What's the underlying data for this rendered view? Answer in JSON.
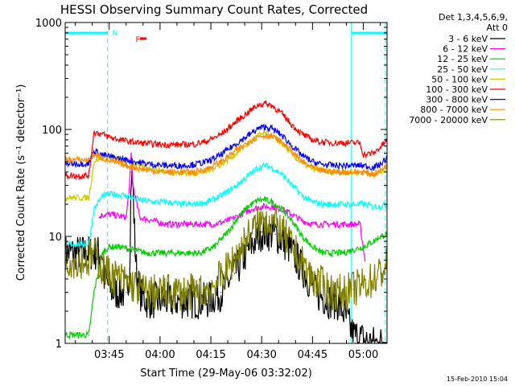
{
  "chart_data": {
    "type": "line",
    "title": "HESSI Observing Summary Count Rates, Corrected",
    "xlabel": "Start Time (29-May-06 03:32:02)",
    "ylabel": "Corrected Count Rate (s⁻¹ detector⁻¹)",
    "yscale": "log",
    "ylim": [
      1,
      1000
    ],
    "xlim": [
      0,
      95
    ],
    "x_tick_labels": [
      "03:45",
      "04:00",
      "04:15",
      "04:30",
      "04:45",
      "05:00"
    ],
    "x_tick_values": [
      13,
      28,
      43,
      58,
      73,
      88
    ],
    "y_tick_labels": [
      "1",
      "10",
      "100",
      "1000"
    ],
    "y_tick_values": [
      1,
      10,
      100,
      1000
    ],
    "legend_title_1": "Det 1,3,4,5,6,9,",
    "legend_title_2": "Att 0",
    "legend_position": "right",
    "series": [
      {
        "name": "3 - 6 keV",
        "color": "#000000",
        "x": [
          0,
          11,
          11.5,
          14,
          18,
          19,
          19.5,
          20,
          20.5,
          21,
          22,
          24,
          28,
          32,
          36,
          42,
          46,
          50,
          54,
          58,
          62,
          66,
          70,
          74,
          78,
          80,
          82,
          85,
          90,
          93,
          95
        ],
        "y": [
          7,
          7,
          4,
          3,
          3,
          5,
          40,
          30,
          10,
          5,
          3,
          2.5,
          2.5,
          2.5,
          2.5,
          2.5,
          3,
          4.5,
          7.5,
          11,
          10.5,
          8,
          5,
          3,
          2.5,
          2.5,
          2,
          1.2,
          1,
          1,
          1
        ]
      },
      {
        "name": "6 - 12 keV",
        "color": "#ff00ff",
        "x": [
          10,
          11,
          14,
          18,
          19,
          19.5,
          20,
          22,
          26,
          30,
          35,
          40,
          44,
          48,
          52,
          55,
          58,
          61,
          64,
          67,
          70,
          73,
          76,
          80,
          84,
          87,
          88.5
        ],
        "y": [
          15,
          16,
          16,
          15,
          30,
          60,
          30,
          15,
          14,
          13,
          13,
          13,
          13,
          14,
          16,
          18,
          19,
          19,
          18,
          16,
          14,
          13,
          13,
          13,
          13,
          13,
          6
        ]
      },
      {
        "name": "12 - 25 keV",
        "color": "#00cc00",
        "x": [
          0,
          7,
          8.5,
          11,
          13,
          16,
          20,
          24,
          28,
          32,
          36,
          40,
          44,
          48,
          51,
          54,
          57,
          59,
          61,
          64,
          67,
          70,
          73,
          76,
          79,
          82,
          85,
          88,
          91,
          93,
          95
        ],
        "y": [
          1.2,
          1.2,
          3,
          7,
          8,
          8,
          7.5,
          7,
          7,
          7,
          7,
          7,
          8,
          11,
          15,
          19,
          22,
          22,
          21,
          18,
          14,
          10,
          8,
          7,
          7,
          7,
          7.5,
          8,
          9,
          10,
          10.5
        ]
      },
      {
        "name": "25 - 50 keV",
        "color": "#00ffff",
        "x": [
          0,
          7,
          8.5,
          11,
          14,
          18,
          22,
          26,
          30,
          34,
          38,
          42,
          46,
          50,
          54,
          57,
          59,
          61,
          64,
          67,
          70,
          73,
          76,
          80,
          84,
          88,
          91,
          93,
          95
        ],
        "y": [
          8.5,
          8.5,
          18,
          24,
          25,
          24,
          22,
          21,
          21,
          20,
          20,
          21,
          24,
          29,
          37,
          44,
          46,
          44,
          38,
          30,
          24,
          21,
          20,
          20,
          20,
          20,
          19,
          19,
          20
        ]
      },
      {
        "name": "50 - 100 keV",
        "color": "#cccc00",
        "x": [
          0,
          7,
          8.5,
          11,
          14,
          18,
          22,
          26,
          30,
          34,
          38,
          42,
          46,
          50,
          54,
          57,
          59,
          61,
          64,
          67,
          70,
          73,
          76,
          80,
          84,
          88,
          91,
          93,
          95
        ],
        "y": [
          23,
          23,
          50,
          56,
          54,
          50,
          46,
          43,
          40,
          39,
          39,
          41,
          47,
          58,
          74,
          88,
          92,
          88,
          74,
          58,
          48,
          43,
          41,
          40,
          40,
          40,
          38,
          40,
          44
        ]
      },
      {
        "name": "100 - 300 keV",
        "color": "#ff0000",
        "x": [
          0,
          7,
          8.5,
          11,
          14,
          18,
          22,
          26,
          30,
          34,
          38,
          42,
          46,
          50,
          54,
          57,
          59,
          61,
          64,
          67,
          70,
          73,
          76,
          80,
          84,
          87,
          88,
          91,
          93,
          95
        ],
        "y": [
          37,
          37,
          95,
          90,
          83,
          78,
          75,
          73,
          72,
          72,
          73,
          78,
          90,
          115,
          145,
          170,
          175,
          168,
          140,
          110,
          90,
          80,
          76,
          75,
          75,
          75,
          58,
          60,
          68,
          80
        ]
      },
      {
        "name": "300 - 800 keV",
        "color": "#0000ff",
        "x": [
          0,
          7,
          8.5,
          11,
          14,
          18,
          22,
          26,
          30,
          34,
          38,
          42,
          46,
          50,
          54,
          57,
          59,
          61,
          64,
          67,
          70,
          73,
          76,
          80,
          84,
          88,
          91,
          93,
          95
        ],
        "y": [
          48,
          48,
          63,
          58,
          55,
          52,
          49,
          47,
          46,
          46,
          47,
          50,
          58,
          72,
          88,
          102,
          106,
          102,
          88,
          70,
          57,
          50,
          47,
          46,
          46,
          46,
          44,
          47,
          55
        ]
      },
      {
        "name": "800 - 7000 keV",
        "color": "#ff8800",
        "x": [
          0,
          7,
          8.5,
          11,
          14,
          18,
          22,
          26,
          30,
          34,
          38,
          42,
          46,
          50,
          54,
          57,
          59,
          61,
          64,
          67,
          70,
          73,
          76,
          80,
          84,
          88,
          91,
          93,
          95
        ],
        "y": [
          52,
          52,
          58,
          54,
          50,
          46,
          43,
          41,
          40,
          40,
          40,
          43,
          50,
          62,
          76,
          86,
          88,
          86,
          76,
          62,
          50,
          44,
          41,
          40,
          40,
          40,
          38,
          41,
          47
        ]
      },
      {
        "name": "7000 - 20000 keV",
        "color": "#808000",
        "x": [
          0,
          7,
          8.5,
          11,
          13,
          16,
          20,
          24,
          28,
          32,
          36,
          40,
          44,
          48,
          51,
          54,
          57,
          59,
          61,
          64,
          67,
          70,
          73,
          76,
          79,
          82,
          85,
          88,
          91,
          93,
          95
        ],
        "y": [
          6,
          6,
          7,
          5,
          4.5,
          4,
          3.5,
          3,
          3,
          3,
          3,
          3,
          3.5,
          5,
          7,
          10,
          13,
          14.5,
          14,
          11,
          8,
          5.5,
          4,
          3.5,
          3,
          3,
          3.2,
          3.5,
          4,
          4.5,
          5.5
        ]
      }
    ],
    "annotations": {
      "night_label": "N",
      "flare_label": "F",
      "night_color": "#00ffff",
      "flare_color": "#ff0000",
      "night_bars": [
        [
          0,
          12.5
        ],
        [
          84.5,
          95
        ]
      ],
      "flare_bar": [
        22,
        24
      ],
      "saa_lines_solid": [
        84.5
      ],
      "saa_lines_dashed": [
        12.5,
        95
      ]
    }
  },
  "footer_date": "15-Feb-2010 15:04"
}
